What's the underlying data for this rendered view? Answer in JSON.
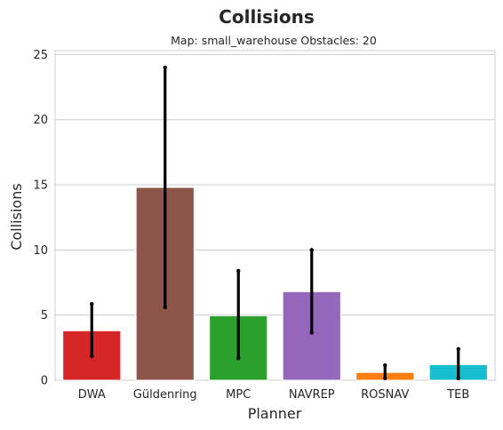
{
  "chart_data": {
    "type": "bar",
    "title": "Collisions",
    "subtitle": "Map: small_warehouse Obstacles: 20",
    "xlabel": "Planner",
    "ylabel": "Collisions",
    "ylim": [
      0,
      25.3
    ],
    "yticks": [
      "0",
      "5",
      "10",
      "15",
      "20",
      "25"
    ],
    "grid": "horizontal",
    "categories": [
      "DWA",
      "Güldenring",
      "MPC",
      "NAVREP",
      "ROSNAV",
      "TEB"
    ],
    "values": [
      3.8,
      14.8,
      4.95,
      6.8,
      0.6,
      1.2
    ],
    "error_low": [
      1.85,
      5.6,
      1.7,
      3.65,
      0.15,
      0.15
    ],
    "error_high": [
      5.85,
      24.0,
      8.4,
      10.0,
      1.15,
      2.4
    ],
    "colors": [
      "#d62728",
      "#8c564b",
      "#2ca02c",
      "#9467bd",
      "#ff7f0e",
      "#17becf"
    ]
  }
}
